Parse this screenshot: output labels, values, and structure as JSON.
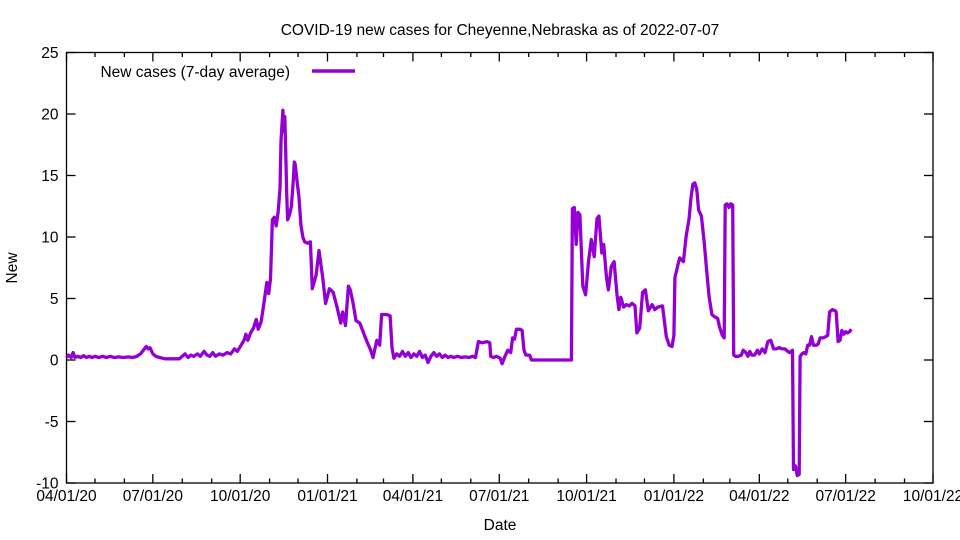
{
  "chart_data": {
    "type": "line",
    "title": "COVID-19 new cases for Cheyenne,Nebraska as of 2022-07-07",
    "xlabel": "Date",
    "ylabel": "New",
    "ylim": [
      -10,
      25
    ],
    "y_ticks": [
      -10,
      -5,
      0,
      5,
      10,
      15,
      20,
      25
    ],
    "grid": false,
    "background_color": "#ffffff",
    "axis_color": "#000000",
    "x_axis": {
      "range_days": [
        0,
        913
      ],
      "major_ticks": [
        {
          "day": 0,
          "label": "04/01/20"
        },
        {
          "day": 91,
          "label": "07/01/20"
        },
        {
          "day": 183,
          "label": "10/01/20"
        },
        {
          "day": 275,
          "label": "01/01/21"
        },
        {
          "day": 365,
          "label": "04/01/21"
        },
        {
          "day": 456,
          "label": "07/01/21"
        },
        {
          "day": 548,
          "label": "10/01/21"
        },
        {
          "day": 640,
          "label": "01/01/22"
        },
        {
          "day": 730,
          "label": "04/01/22"
        },
        {
          "day": 821,
          "label": "07/01/22"
        },
        {
          "day": 913,
          "label": "10/01/22"
        }
      ],
      "minor_tick_days": [
        30,
        61,
        122,
        153,
        214,
        244,
        306,
        334,
        395,
        426,
        487,
        518,
        579,
        609,
        671,
        699,
        760,
        791,
        852,
        883
      ]
    },
    "legend": {
      "label": "New cases (7-day average)",
      "position": "top-left-inside"
    },
    "series": [
      {
        "name": "New cases (7-day average)",
        "color": "#9400d3",
        "points_day_value": [
          [
            0,
            0.2
          ],
          [
            2,
            0.4
          ],
          [
            5,
            0.2
          ],
          [
            7,
            0.6
          ],
          [
            9,
            0.2
          ],
          [
            12,
            0.3
          ],
          [
            15,
            0.2
          ],
          [
            18,
            0.35
          ],
          [
            21,
            0.2
          ],
          [
            24,
            0.3
          ],
          [
            27,
            0.2
          ],
          [
            30,
            0.3
          ],
          [
            34,
            0.2
          ],
          [
            38,
            0.3
          ],
          [
            42,
            0.2
          ],
          [
            46,
            0.3
          ],
          [
            50,
            0.2
          ],
          [
            55,
            0.25
          ],
          [
            60,
            0.2
          ],
          [
            65,
            0.25
          ],
          [
            70,
            0.2
          ],
          [
            74,
            0.3
          ],
          [
            78,
            0.5
          ],
          [
            81,
            0.8
          ],
          [
            84,
            1.1
          ],
          [
            86,
            0.9
          ],
          [
            88,
            1.0
          ],
          [
            91,
            0.5
          ],
          [
            94,
            0.3
          ],
          [
            98,
            0.2
          ],
          [
            104,
            0.1
          ],
          [
            112,
            0.1
          ],
          [
            119,
            0.1
          ],
          [
            122,
            0.3
          ],
          [
            125,
            0.5
          ],
          [
            128,
            0.2
          ],
          [
            131,
            0.4
          ],
          [
            134,
            0.3
          ],
          [
            138,
            0.5
          ],
          [
            141,
            0.3
          ],
          [
            145,
            0.7
          ],
          [
            148,
            0.4
          ],
          [
            151,
            0.3
          ],
          [
            154,
            0.6
          ],
          [
            157,
            0.3
          ],
          [
            161,
            0.5
          ],
          [
            165,
            0.4
          ],
          [
            169,
            0.6
          ],
          [
            173,
            0.5
          ],
          [
            177,
            0.9
          ],
          [
            180,
            0.7
          ],
          [
            184,
            1.2
          ],
          [
            187,
            1.6
          ],
          [
            189,
            2.1
          ],
          [
            191,
            1.6
          ],
          [
            194,
            2.2
          ],
          [
            197,
            2.6
          ],
          [
            200,
            3.3
          ],
          [
            202,
            2.5
          ],
          [
            205,
            3.1
          ],
          [
            208,
            4.6
          ],
          [
            211,
            6.3
          ],
          [
            213,
            5.4
          ],
          [
            215,
            6.6
          ],
          [
            217,
            11.4
          ],
          [
            219,
            11.6
          ],
          [
            221,
            10.9
          ],
          [
            223,
            12.0
          ],
          [
            225,
            13.9
          ],
          [
            226,
            17.8
          ],
          [
            228,
            20.3
          ],
          [
            229,
            18.6
          ],
          [
            230,
            19.8
          ],
          [
            231,
            17.0
          ],
          [
            232,
            13.5
          ],
          [
            233,
            11.4
          ],
          [
            235,
            11.8
          ],
          [
            237,
            12.5
          ],
          [
            239,
            14.6
          ],
          [
            240,
            16.1
          ],
          [
            241,
            15.9
          ],
          [
            243,
            14.5
          ],
          [
            245,
            13.2
          ],
          [
            247,
            11.0
          ],
          [
            249,
            10.0
          ],
          [
            251,
            9.6
          ],
          [
            254,
            9.5
          ],
          [
            257,
            9.6
          ],
          [
            259,
            5.8
          ],
          [
            263,
            6.9
          ],
          [
            266,
            8.9
          ],
          [
            270,
            6.7
          ],
          [
            273,
            4.6
          ],
          [
            277,
            5.8
          ],
          [
            281,
            5.5
          ],
          [
            285,
            4.3
          ],
          [
            289,
            3.0
          ],
          [
            291,
            3.9
          ],
          [
            294,
            2.8
          ],
          [
            297,
            6.0
          ],
          [
            299,
            5.7
          ],
          [
            302,
            4.6
          ],
          [
            305,
            3.2
          ],
          [
            309,
            3.0
          ],
          [
            314,
            2.0
          ],
          [
            317,
            1.4
          ],
          [
            320,
            0.9
          ],
          [
            323,
            0.2
          ],
          [
            327,
            1.6
          ],
          [
            330,
            1.2
          ],
          [
            332,
            3.7
          ],
          [
            337,
            3.7
          ],
          [
            341,
            3.6
          ],
          [
            343,
            1.0
          ],
          [
            345,
            0.15
          ],
          [
            348,
            0.5
          ],
          [
            351,
            0.3
          ],
          [
            354,
            0.7
          ],
          [
            357,
            0.3
          ],
          [
            360,
            0.6
          ],
          [
            363,
            0.2
          ],
          [
            366,
            0.5
          ],
          [
            369,
            0.3
          ],
          [
            372,
            0.7
          ],
          [
            375,
            0.2
          ],
          [
            378,
            0.4
          ],
          [
            381,
            -0.2
          ],
          [
            384,
            0.3
          ],
          [
            387,
            0.6
          ],
          [
            390,
            0.3
          ],
          [
            393,
            0.5
          ],
          [
            396,
            0.2
          ],
          [
            399,
            0.4
          ],
          [
            402,
            0.2
          ],
          [
            405,
            0.3
          ],
          [
            408,
            0.2
          ],
          [
            412,
            0.3
          ],
          [
            416,
            0.2
          ],
          [
            420,
            0.25
          ],
          [
            424,
            0.2
          ],
          [
            428,
            0.3
          ],
          [
            431,
            0.2
          ],
          [
            434,
            1.5
          ],
          [
            438,
            1.4
          ],
          [
            443,
            1.5
          ],
          [
            446,
            1.4
          ],
          [
            447,
            0.3
          ],
          [
            450,
            0.2
          ],
          [
            453,
            0.3
          ],
          [
            457,
            0.15
          ],
          [
            459,
            -0.3
          ],
          [
            462,
            0.3
          ],
          [
            465,
            0.8
          ],
          [
            468,
            0.6
          ],
          [
            470,
            1.8
          ],
          [
            472,
            1.7
          ],
          [
            474,
            2.5
          ],
          [
            478,
            2.5
          ],
          [
            480,
            2.4
          ],
          [
            482,
            0.8
          ],
          [
            484,
            0.4
          ],
          [
            488,
            0.4
          ],
          [
            490,
            0
          ],
          [
            532,
            0
          ],
          [
            533,
            12.3
          ],
          [
            535,
            12.4
          ],
          [
            537,
            9.4
          ],
          [
            539,
            12.0
          ],
          [
            541,
            11.8
          ],
          [
            544,
            6.0
          ],
          [
            547,
            5.3
          ],
          [
            550,
            8.0
          ],
          [
            553,
            9.8
          ],
          [
            556,
            8.4
          ],
          [
            559,
            11.5
          ],
          [
            561,
            11.7
          ],
          [
            564,
            8.7
          ],
          [
            566,
            9.4
          ],
          [
            569,
            6.7
          ],
          [
            571,
            5.7
          ],
          [
            574,
            7.6
          ],
          [
            577,
            8.0
          ],
          [
            580,
            5.3
          ],
          [
            582,
            4.1
          ],
          [
            584,
            5.1
          ],
          [
            587,
            4.3
          ],
          [
            590,
            4.5
          ],
          [
            593,
            4.4
          ],
          [
            596,
            4.6
          ],
          [
            599,
            4.4
          ],
          [
            601,
            2.2
          ],
          [
            604,
            2.6
          ],
          [
            607,
            5.5
          ],
          [
            610,
            5.7
          ],
          [
            613,
            4.0
          ],
          [
            617,
            4.5
          ],
          [
            620,
            4.1
          ],
          [
            623,
            4.3
          ],
          [
            628,
            4.4
          ],
          [
            632,
            1.9
          ],
          [
            635,
            1.2
          ],
          [
            638,
            1.1
          ],
          [
            640,
            2.0
          ],
          [
            641,
            6.7
          ],
          [
            646,
            8.3
          ],
          [
            650,
            8.0
          ],
          [
            653,
            10.1
          ],
          [
            656,
            11.5
          ],
          [
            658,
            13.2
          ],
          [
            660,
            14.3
          ],
          [
            662,
            14.4
          ],
          [
            664,
            13.9
          ],
          [
            666,
            12.2
          ],
          [
            669,
            11.7
          ],
          [
            672,
            9.5
          ],
          [
            674,
            7.7
          ],
          [
            677,
            5.2
          ],
          [
            680,
            3.7
          ],
          [
            683,
            3.5
          ],
          [
            686,
            3.4
          ],
          [
            688,
            2.7
          ],
          [
            691,
            2.0
          ],
          [
            693,
            1.8
          ],
          [
            694,
            12.6
          ],
          [
            696,
            12.7
          ],
          [
            698,
            12.4
          ],
          [
            700,
            12.7
          ],
          [
            702,
            12.6
          ],
          [
            703,
            0.4
          ],
          [
            705,
            0.3
          ],
          [
            708,
            0.3
          ],
          [
            711,
            0.4
          ],
          [
            713,
            0.8
          ],
          [
            716,
            0.6
          ],
          [
            718,
            0.3
          ],
          [
            720,
            0.7
          ],
          [
            722,
            0.4
          ],
          [
            725,
            0.4
          ],
          [
            728,
            0.8
          ],
          [
            730,
            0.5
          ],
          [
            733,
            0.9
          ],
          [
            736,
            0.6
          ],
          [
            739,
            1.5
          ],
          [
            742,
            1.6
          ],
          [
            745,
            0.9
          ],
          [
            748,
            0.9
          ],
          [
            751,
            1.0
          ],
          [
            754,
            0.9
          ],
          [
            757,
            0.9
          ],
          [
            760,
            0.7
          ],
          [
            762,
            0.6
          ],
          [
            765,
            0.8
          ],
          [
            766,
            -8.9
          ],
          [
            768,
            -8.6
          ],
          [
            770,
            -9.4
          ],
          [
            772,
            -9.3
          ],
          [
            773,
            0.3
          ],
          [
            775,
            0.5
          ],
          [
            777,
            0.6
          ],
          [
            779,
            0.5
          ],
          [
            781,
            1.2
          ],
          [
            783,
            1.2
          ],
          [
            785,
            1.9
          ],
          [
            787,
            1.2
          ],
          [
            790,
            1.2
          ],
          [
            792,
            1.3
          ],
          [
            794,
            1.8
          ],
          [
            797,
            1.8
          ],
          [
            800,
            1.9
          ],
          [
            802,
            2.0
          ],
          [
            804,
            3.9
          ],
          [
            807,
            4.1
          ],
          [
            810,
            4.0
          ],
          [
            811,
            3.9
          ],
          [
            813,
            1.5
          ],
          [
            815,
            1.6
          ],
          [
            817,
            2.4
          ],
          [
            819,
            2.1
          ],
          [
            821,
            2.3
          ],
          [
            823,
            2.2
          ],
          [
            825,
            2.3
          ],
          [
            827,
            2.5
          ]
        ]
      }
    ]
  }
}
